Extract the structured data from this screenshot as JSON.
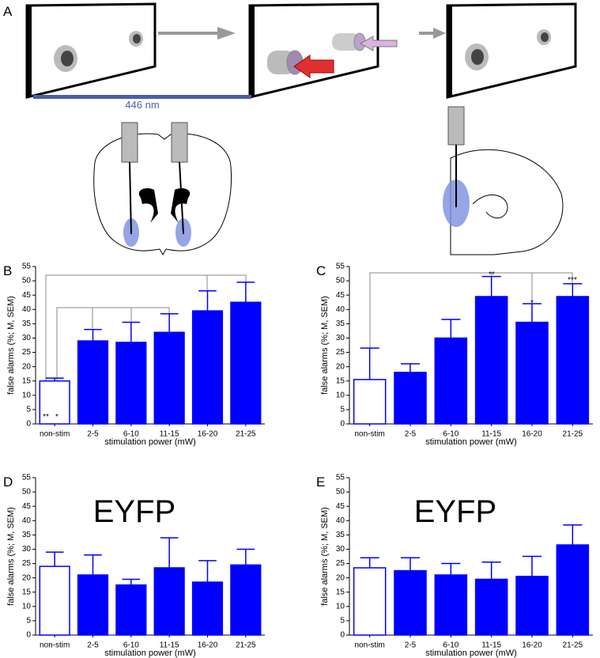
{
  "panel_a": {
    "label": "A",
    "wavelength_label": "446 nm"
  },
  "chart_data": [
    {
      "type": "bar",
      "panel": "B",
      "ylabel": "false alarms (%; M, SEM)",
      "xlabel": "stimulation power (mW)",
      "categories": [
        "non-stim",
        "2-5",
        "6-10",
        "11-15",
        "16-20",
        "21-25"
      ],
      "values": [
        15,
        29,
        28.5,
        32,
        39.5,
        42.5
      ],
      "errors": [
        1,
        4,
        7,
        6.5,
        7,
        7
      ],
      "bar_fills": [
        "#ffffff",
        "#0000ff",
        "#0000ff",
        "#0000ff",
        "#0000ff",
        "#0000ff"
      ],
      "color": "#0000ff",
      "ylim": [
        0,
        55
      ],
      "yticks": [
        0,
        5,
        10,
        15,
        20,
        25,
        30,
        35,
        40,
        45,
        50,
        55
      ],
      "stars": [
        "**",
        "*"
      ]
    },
    {
      "type": "bar",
      "panel": "C",
      "ylabel": "false alarms (%; M, SEM)",
      "xlabel": "stimulation power (mW)",
      "categories": [
        "non-stim",
        "2-5",
        "6-10",
        "11-15",
        "16-20",
        "21-25"
      ],
      "values": [
        15.5,
        18,
        30,
        44.5,
        35.5,
        44.5
      ],
      "errors": [
        11,
        3,
        6.5,
        7,
        6.5,
        4.5
      ],
      "bar_fills": [
        "#ffffff",
        "#0000ff",
        "#0000ff",
        "#0000ff",
        "#0000ff",
        "#0000ff"
      ],
      "color": "#0000ff",
      "ylim": [
        0,
        55
      ],
      "yticks": [
        0,
        5,
        10,
        15,
        20,
        25,
        30,
        35,
        40,
        45,
        50,
        55
      ],
      "stars": [
        "**",
        "*",
        "***"
      ]
    },
    {
      "type": "bar",
      "panel": "D",
      "annotation": "EYFP",
      "ylabel": "false alarms (%; M, SEM)",
      "xlabel": "stimulation power (mW)",
      "categories": [
        "non-stim",
        "2-5",
        "6-10",
        "11-15",
        "16-20",
        "21-25"
      ],
      "values": [
        24,
        21,
        17.5,
        23.5,
        18.5,
        24.5
      ],
      "errors": [
        5,
        7,
        2,
        10.5,
        7.5,
        5.5
      ],
      "bar_fills": [
        "#ffffff",
        "#0000ff",
        "#0000ff",
        "#0000ff",
        "#0000ff",
        "#0000ff"
      ],
      "color": "#0000ff",
      "ylim": [
        0,
        55
      ],
      "yticks": [
        0,
        5,
        10,
        15,
        20,
        25,
        30,
        35,
        40,
        45,
        50,
        55
      ]
    },
    {
      "type": "bar",
      "panel": "E",
      "annotation": "EYFP",
      "ylabel": "false alarms (%; M, SEM)",
      "xlabel": "stimulation power (mW)",
      "categories": [
        "non-stim",
        "2-5",
        "6-10",
        "11-15",
        "16-20",
        "21-25"
      ],
      "values": [
        23.5,
        22.5,
        21,
        19.5,
        20.5,
        31.5
      ],
      "errors": [
        3.5,
        4.5,
        4,
        6,
        7,
        7
      ],
      "bar_fills": [
        "#ffffff",
        "#0000ff",
        "#0000ff",
        "#0000ff",
        "#0000ff",
        "#0000ff"
      ],
      "color": "#0000ff",
      "ylim": [
        0,
        55
      ],
      "yticks": [
        0,
        5,
        10,
        15,
        20,
        25,
        30,
        35,
        40,
        45,
        50,
        55
      ]
    }
  ]
}
